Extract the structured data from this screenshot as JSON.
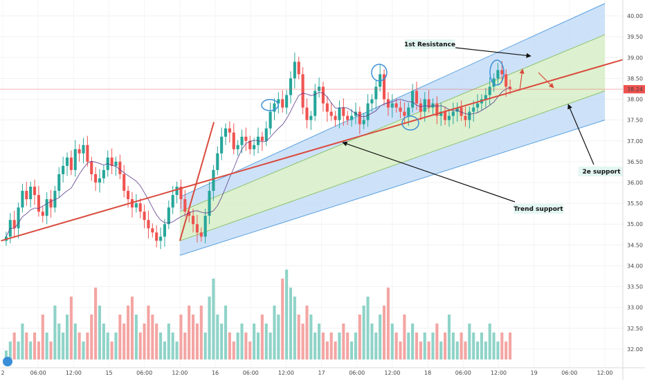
{
  "chart_data": {
    "type": "candlestick",
    "price_axis": {
      "ticks": [
        "40.00",
        "39.50",
        "39.00",
        "38.50",
        "38.00",
        "37.50",
        "37.00",
        "36.50",
        "36.00",
        "35.50",
        "35.00",
        "34.50",
        "34.00",
        "33.50",
        "33.00",
        "32.50",
        "32.00"
      ],
      "ylim": [
        31.75,
        40.25
      ],
      "current_price": "38.24"
    },
    "time_axis": {
      "ticks": [
        "2",
        "06:00",
        "12:00",
        "15",
        "06:00",
        "12:00",
        "16",
        "06:00",
        "12:00",
        "17",
        "06:00",
        "12:00",
        "18",
        "06:00",
        "12:00",
        "19",
        "06:00",
        "12:00"
      ]
    },
    "annotations": {
      "first_resistance": "1st Resistance",
      "second_support": "2e support",
      "trend_support": "Trend support"
    },
    "trend_line": {
      "x": [
        "14 00:00",
        "19 00:00"
      ],
      "y": [
        34.6,
        38.95
      ]
    },
    "channel": {
      "upper": {
        "x": [
          "15 12:00",
          "19 12:00"
        ],
        "y": [
          35.65,
          40.3
        ]
      },
      "upper_inner": {
        "x": [
          "15 12:00",
          "19 12:00"
        ],
        "y": [
          35.3,
          39.55
        ]
      },
      "mid": {
        "x": [
          "15 12:00",
          "19 12:00"
        ],
        "y": [
          34.95,
          38.85
        ]
      },
      "lower_inner": {
        "x": [
          "15 12:00",
          "19 12:00"
        ],
        "y": [
          34.6,
          38.2
        ]
      }
    },
    "series": [
      {
        "close": [
          34.7,
          35.1,
          34.9,
          35.4,
          35.8,
          35.6,
          35.9,
          35.7,
          35.3,
          35.2,
          35.6,
          35.4,
          35.8,
          36.2,
          36.4,
          36.6,
          36.3,
          36.8,
          36.7,
          36.9,
          36.5,
          36.2,
          36.0,
          36.1,
          36.3,
          36.6,
          36.4,
          36.5,
          36.2,
          35.8,
          35.6,
          35.4,
          35.5,
          35.3,
          35.1,
          34.9,
          34.8,
          34.6,
          34.7,
          35.0,
          35.4,
          35.7,
          35.9,
          35.6,
          35.3,
          35.2,
          35.0,
          34.8,
          34.7,
          35.2,
          35.8,
          36.3,
          36.7,
          37.1,
          37.3,
          37.2,
          36.8,
          36.9,
          37.1,
          37.0,
          36.8,
          36.9,
          37.1,
          37.0,
          37.3,
          37.7,
          37.9,
          38.0,
          37.8,
          38.1,
          38.5,
          38.9,
          38.6,
          37.8,
          37.5,
          37.6,
          38.2,
          38.3,
          37.9,
          37.7,
          37.6,
          37.5,
          37.8,
          37.6,
          37.5,
          37.6,
          37.7,
          37.4,
          37.5,
          37.9,
          38.0,
          38.3,
          38.6,
          38.0,
          37.8,
          37.9,
          37.8,
          37.7,
          37.6,
          37.8,
          38.2,
          37.9,
          37.7,
          38.0,
          37.8,
          37.9,
          37.6,
          37.7,
          37.5,
          37.6,
          37.7,
          37.8,
          37.6,
          37.5,
          37.7,
          37.8,
          37.9,
          38.0,
          38.1,
          38.3,
          38.5,
          38.7,
          38.6,
          38.3,
          38.24
        ],
        "volume": [
          0.1,
          0.2,
          0.3,
          0.2,
          0.4,
          0.3,
          0.2,
          0.3,
          0.2,
          0.5,
          0.3,
          0.2,
          0.6,
          0.4,
          0.3,
          0.5,
          0.7,
          0.4,
          0.3,
          0.2,
          0.3,
          0.5,
          0.8,
          0.6,
          0.4,
          0.3,
          0.2,
          0.3,
          0.5,
          0.4,
          0.6,
          0.7,
          0.5,
          0.3,
          0.4,
          0.6,
          0.5,
          0.4,
          0.3,
          0.2,
          0.4,
          0.3,
          0.2,
          0.5,
          0.3,
          0.6,
          0.5,
          0.4,
          0.6,
          0.3,
          0.7,
          0.9,
          0.5,
          0.4,
          0.6,
          0.3,
          0.2,
          0.3,
          0.4,
          0.3,
          0.2,
          0.4,
          0.3,
          0.5,
          0.4,
          0.3,
          0.6,
          0.5,
          0.9,
          1.0,
          0.8,
          0.7,
          0.5,
          0.4,
          0.6,
          0.5,
          0.3,
          0.4,
          0.3,
          0.2,
          0.3,
          0.2,
          0.3,
          0.4,
          0.3,
          0.2,
          0.3,
          0.5,
          0.6,
          0.7,
          0.4,
          0.3,
          0.5,
          0.6,
          0.8,
          0.4,
          0.3,
          0.2,
          0.5,
          0.3,
          0.4,
          0.3,
          0.2,
          0.3,
          0.2,
          0.3,
          0.4,
          0.2,
          0.3,
          0.5,
          0.3,
          0.2,
          0.3,
          0.2,
          0.4,
          0.3,
          0.2,
          0.3,
          0.2,
          0.4,
          0.3,
          0.2,
          0.3,
          0.2,
          0.3
        ]
      }
    ]
  }
}
